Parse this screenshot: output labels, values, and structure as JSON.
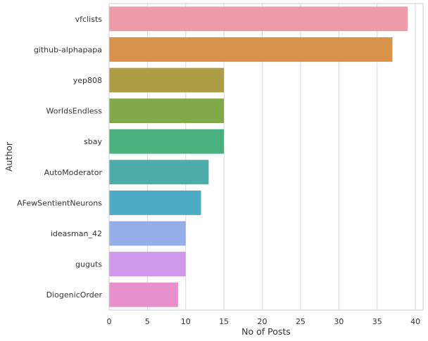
{
  "chart_data": {
    "type": "bar",
    "orientation": "horizontal",
    "title": "",
    "xlabel": "No of Posts",
    "ylabel": "Author",
    "xlim": [
      0,
      41
    ],
    "x_ticks": [
      0,
      5,
      10,
      15,
      20,
      25,
      30,
      35,
      40
    ],
    "grid": "vertical",
    "categories": [
      "vfclists",
      "github-alphapapa",
      "yep808",
      "WorldsEndless",
      "sbay",
      "AutoModerator",
      "AFewSentientNeurons",
      "ideasman_42",
      "guguts",
      "DiogenicOrder"
    ],
    "values": [
      39,
      37,
      15,
      15,
      15,
      13,
      12,
      10,
      10,
      9
    ],
    "colors": [
      "#ed9ba8",
      "#d8924a",
      "#ad9e45",
      "#81a94a",
      "#49b07f",
      "#4cada8",
      "#4dabc7",
      "#94aeea",
      "#cf98e8",
      "#e890cb"
    ]
  }
}
